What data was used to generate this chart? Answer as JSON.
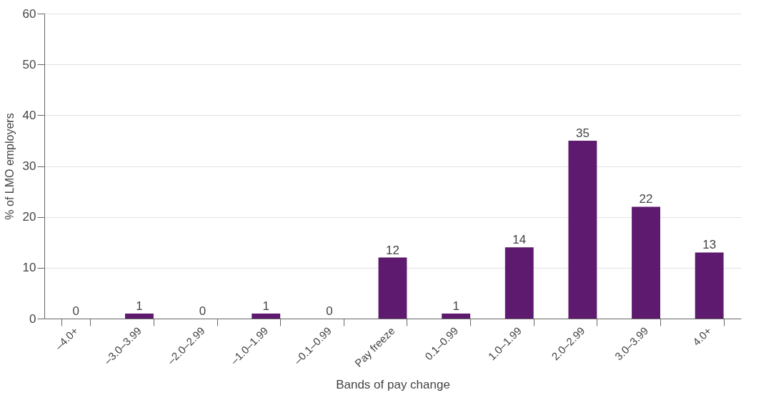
{
  "chart_data": {
    "type": "bar",
    "xlabel": "Bands of pay change",
    "ylabel": "% of LMO employers",
    "categories": [
      "–4.0+",
      "–3.0–3.99",
      "–2.0–2.99",
      "–1.0–1.99",
      "–0.1–0.99",
      "Pay freeze",
      "0.1–0.99",
      "1.0–1.99",
      "2.0–2.99",
      "3.0–3.99",
      "4.0+"
    ],
    "values": [
      0,
      1,
      0,
      1,
      0,
      12,
      1,
      14,
      35,
      22,
      13
    ],
    "color": "#5e1a6e",
    "ylim": [
      0,
      60
    ],
    "yticks": [
      0,
      10,
      20,
      30,
      40,
      50,
      60
    ],
    "grid": "y",
    "data_labels": true
  }
}
